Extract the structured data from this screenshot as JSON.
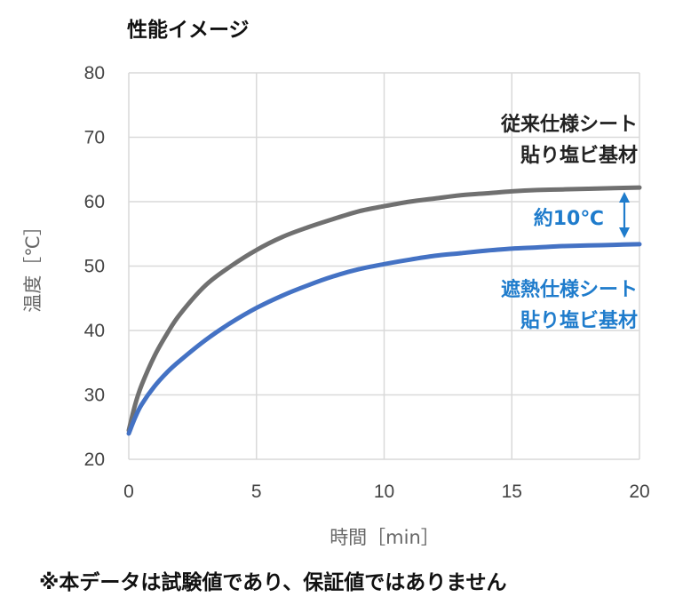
{
  "title": "性能イメージ",
  "note": "※本データは試験値であり、保証値ではありません",
  "chart_data": {
    "type": "line",
    "xlabel": "時間［min］",
    "ylabel": "温度［℃］",
    "xlim": [
      0,
      20
    ],
    "ylim": [
      20,
      80
    ],
    "xticks": [
      0,
      5,
      10,
      15,
      20
    ],
    "yticks": [
      20,
      30,
      40,
      50,
      60,
      70,
      80
    ],
    "grid": true,
    "series": [
      {
        "name_lines": [
          "従来仕様シート",
          "貼り塩ビ基材"
        ],
        "color": "#707070",
        "x": [
          0,
          0.25,
          0.5,
          1,
          1.5,
          2,
          3,
          4,
          5,
          6,
          7,
          8,
          9,
          10,
          11,
          12,
          13,
          14,
          15,
          16,
          17,
          18,
          19,
          20
        ],
        "y": [
          24.5,
          28.5,
          31.5,
          36,
          39.5,
          42.5,
          47,
          50,
          52.5,
          54.5,
          56,
          57.3,
          58.5,
          59.3,
          60,
          60.5,
          61,
          61.3,
          61.6,
          61.8,
          61.9,
          62,
          62.1,
          62.2
        ]
      },
      {
        "name_lines": [
          "遮熱仕様シート",
          "貼り塩ビ基材"
        ],
        "color": "#4472c4",
        "x": [
          0,
          0.25,
          0.5,
          1,
          1.5,
          2,
          3,
          4,
          5,
          6,
          7,
          8,
          9,
          10,
          11,
          12,
          13,
          14,
          15,
          16,
          17,
          18,
          19,
          20
        ],
        "y": [
          24,
          26.5,
          28.5,
          31.3,
          33.5,
          35.3,
          38.5,
          41.2,
          43.5,
          45.4,
          47,
          48.4,
          49.5,
          50.3,
          51,
          51.6,
          52,
          52.4,
          52.7,
          52.9,
          53.1,
          53.2,
          53.3,
          53.4
        ]
      }
    ],
    "annotation": {
      "text": "約10℃",
      "color": "#1f7ccc"
    }
  }
}
